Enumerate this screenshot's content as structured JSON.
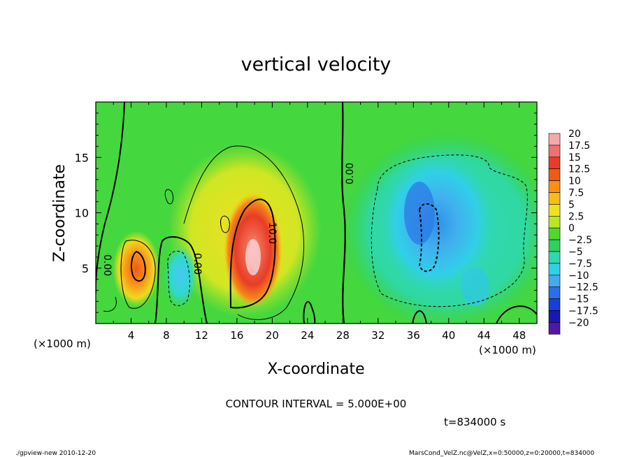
{
  "chart_data": {
    "type": "heatmap",
    "title": "vertical velocity",
    "xlabel": "X-coordinate",
    "ylabel": "Z-coordinate",
    "x_unit": "(×1000 m)",
    "xlim": [
      0,
      50
    ],
    "ylim": [
      0,
      20
    ],
    "xticks": [
      "4",
      "8",
      "12",
      "16",
      "20",
      "24",
      "28",
      "32",
      "36",
      "40",
      "44",
      "48"
    ],
    "yticks": [
      "5",
      "10",
      "15"
    ],
    "contour_interval_text": "CONTOUR INTERVAL = 5.000E+00",
    "time_text": "t=834000  s",
    "contour_labels": [
      "0.00",
      "10.0",
      "0.00",
      "0.00"
    ],
    "colorbar": {
      "labels": [
        "20",
        "17.5",
        "15",
        "12.5",
        "10",
        "7.5",
        "5",
        "2.5",
        "0",
        "−2.5",
        "−5",
        "−7.5",
        "−10",
        "−12.5",
        "−15",
        "−17.5",
        "−20"
      ],
      "colors": [
        "#f8a8a8",
        "#f07070",
        "#e83c28",
        "#f05a14",
        "#f89018",
        "#f8bc18",
        "#f0e020",
        "#b8e820",
        "#50d830",
        "#30d060",
        "#30d8b0",
        "#30d0e8",
        "#48a8f0",
        "#2870e8",
        "#1840d8",
        "#1818b0",
        "#5018a8"
      ]
    },
    "features": [
      {
        "name": "updraft",
        "x_center": 18.2,
        "z_center": 6.5,
        "peak": 20
      },
      {
        "name": "updraft",
        "x_center": 4.5,
        "z_center": 4.5,
        "peak": 10
      },
      {
        "name": "downdraft",
        "x_center": 37.5,
        "z_center": 8.5,
        "peak": -12.5
      },
      {
        "name": "downdraft",
        "x_center": 10.0,
        "z_center": 4.0,
        "peak": -7.5
      }
    ]
  },
  "footer": {
    "left": "./gpview-new   2010-12-20",
    "right": "MarsCond_VelZ.nc@VelZ,x=0:50000,z=0:20000,t=834000"
  }
}
